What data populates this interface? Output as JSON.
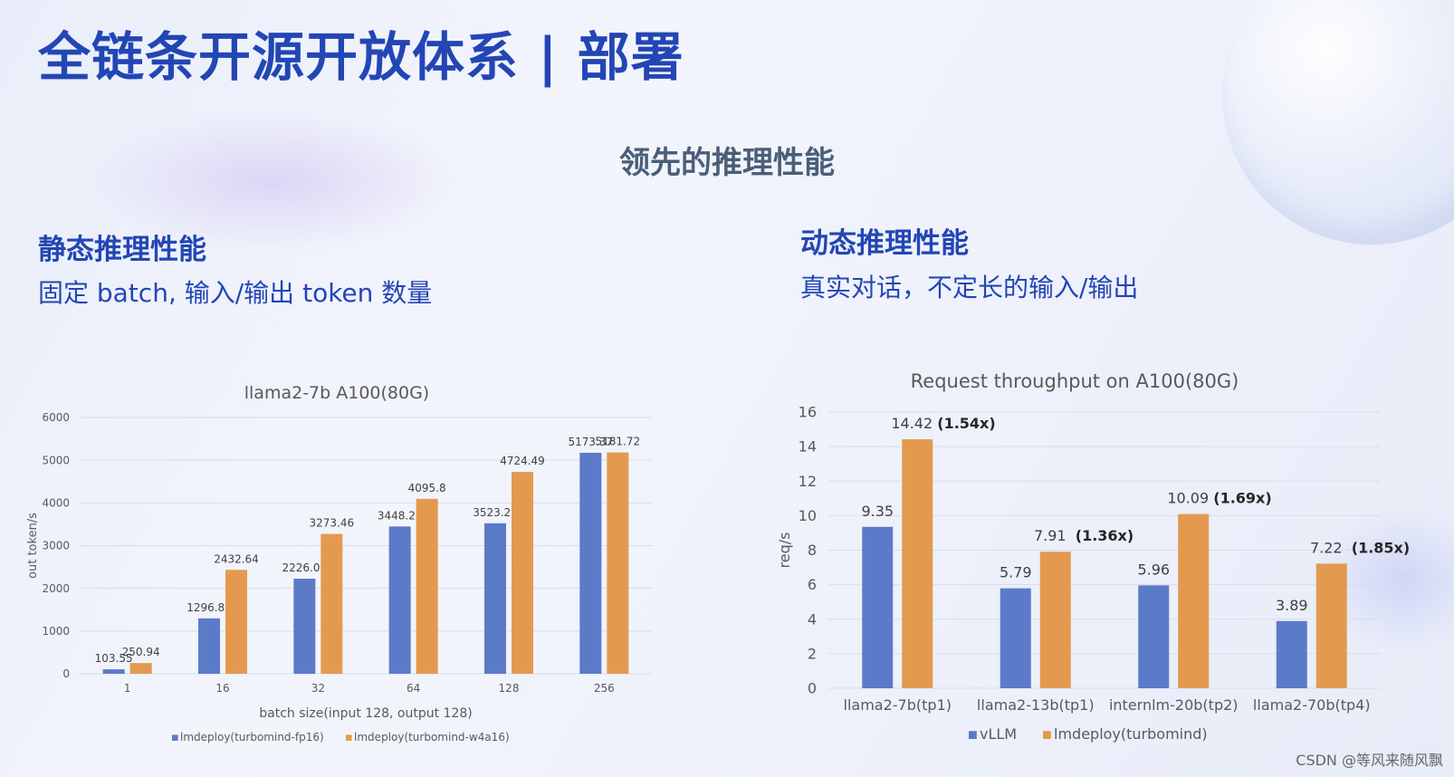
{
  "slide": {
    "title": "全链条开源开放体系 | 部署",
    "subtitle": "领先的推理性能",
    "left_section": {
      "heading": "静态推理性能",
      "description": "固定 batch, 输入/输出 token 数量"
    },
    "right_section": {
      "heading": "动态推理性能",
      "description": "真实对话，不定长的输入/输出"
    },
    "watermark": "CSDN @等风来随风飘"
  },
  "chart_data": [
    {
      "type": "bar",
      "title": "llama2-7b A100(80G)",
      "xlabel": "batch size(input 128, output 128)",
      "ylabel": "out token/s",
      "ylim": [
        0,
        6000
      ],
      "yticks": [
        "0",
        "1000",
        "2000",
        "3000",
        "4000",
        "5000",
        "6000"
      ],
      "categories": [
        "1",
        "16",
        "32",
        "64",
        "128",
        "256"
      ],
      "series": [
        {
          "name": "lmdeploy(turbomind-fp16)",
          "color": "#5b7bc8",
          "values": [
            103.55,
            1296.88,
            2226.09,
            3448.22,
            3523.22,
            5173.37
          ],
          "labels": [
            "103.55",
            "1296.88",
            "2226.09",
            "3448.22",
            "3523.22",
            "5173.37"
          ]
        },
        {
          "name": "lmdeploy(turbomind-w4a16)",
          "color": "#e39a4e",
          "values": [
            250.94,
            2432.64,
            3273.46,
            4095.8,
            4724.49,
            5181.72
          ],
          "labels": [
            "250.94",
            "2432.64",
            "3273.46",
            "4095.8",
            "4724.49",
            "5181.72"
          ]
        }
      ],
      "grid": true,
      "legend": "bottom"
    },
    {
      "type": "bar",
      "title": "Request throughput on A100(80G)",
      "xlabel": "",
      "ylabel": "req/s",
      "ylim": [
        0,
        16
      ],
      "yticks": [
        "0",
        "2",
        "4",
        "6",
        "8",
        "10",
        "12",
        "14",
        "16"
      ],
      "categories": [
        "llama2-7b(tp1)",
        "llama2-13b(tp1)",
        "internlm-20b(tp2)",
        "llama2-70b(tp4)"
      ],
      "series": [
        {
          "name": "vLLM",
          "color": "#5b7bc8",
          "values": [
            9.35,
            5.79,
            5.96,
            3.89
          ],
          "labels": [
            "9.35",
            "5.79",
            "5.96",
            "3.89"
          ]
        },
        {
          "name": "lmdeploy(turbomind)",
          "color": "#e39a4e",
          "values": [
            14.42,
            7.91,
            10.09,
            7.22
          ],
          "labels": [
            "14.42",
            "7.91",
            "10.09",
            "7.22"
          ],
          "annotations": [
            "(1.54x)",
            "(1.36x)",
            "(1.69x)",
            "(1.85x)"
          ]
        }
      ],
      "grid": true,
      "legend": "bottom"
    }
  ]
}
